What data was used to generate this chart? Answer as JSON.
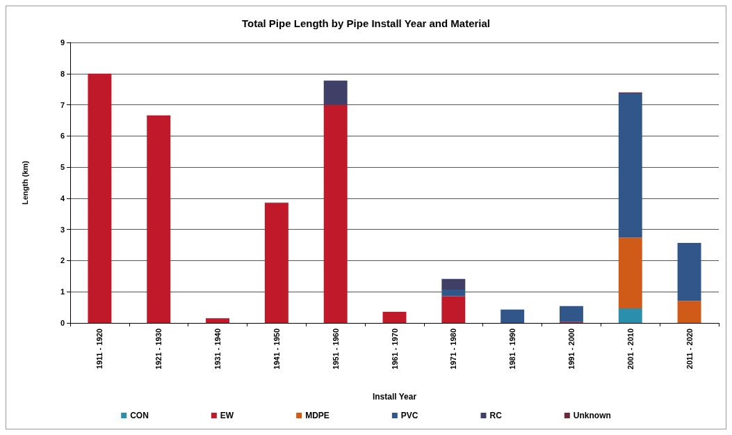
{
  "chart_data": {
    "type": "bar",
    "title": "Total Pipe Length by Pipe Install Year and Material",
    "xlabel": "Install Year",
    "ylabel": "Length (km)",
    "stacked": true,
    "grid": "y",
    "legend": "bottom",
    "categories": [
      "1911 - 1920",
      "1921 - 1930",
      "1931 - 1940",
      "1941 - 1950",
      "1951 - 1960",
      "1961 - 1970",
      "1971 - 1980",
      "1981 - 1990",
      "1991 - 2000",
      "2001 - 2010",
      "2011 - 2020"
    ],
    "ylim": [
      0,
      9
    ],
    "yticks": [
      0,
      1,
      2,
      3,
      4,
      5,
      6,
      7,
      8,
      9
    ],
    "series": [
      {
        "name": "CON",
        "color": "#2a8fad",
        "values": [
          null,
          null,
          null,
          null,
          null,
          null,
          null,
          null,
          null,
          0.47,
          null
        ]
      },
      {
        "name": "EW",
        "color": "#c0192a",
        "values": [
          8.0,
          6.66,
          0.15,
          3.86,
          7.0,
          0.36,
          0.86,
          null,
          0.03,
          null,
          null
        ]
      },
      {
        "name": "MDPE",
        "color": "#d05a18",
        "values": [
          null,
          null,
          null,
          null,
          null,
          null,
          null,
          null,
          null,
          2.27,
          0.71
        ]
      },
      {
        "name": "PVC",
        "color": "#31578a",
        "values": [
          null,
          null,
          null,
          null,
          null,
          null,
          0.21,
          0.43,
          0.51,
          4.63,
          1.86
        ]
      },
      {
        "name": "RC",
        "color": "#3f3f68",
        "values": [
          null,
          null,
          null,
          null,
          0.78,
          null,
          0.34,
          null,
          null,
          null,
          null
        ]
      },
      {
        "name": "Unknown",
        "color": "#6e2a3a",
        "values": [
          null,
          null,
          null,
          null,
          null,
          null,
          null,
          null,
          null,
          0.03,
          null
        ]
      }
    ]
  }
}
